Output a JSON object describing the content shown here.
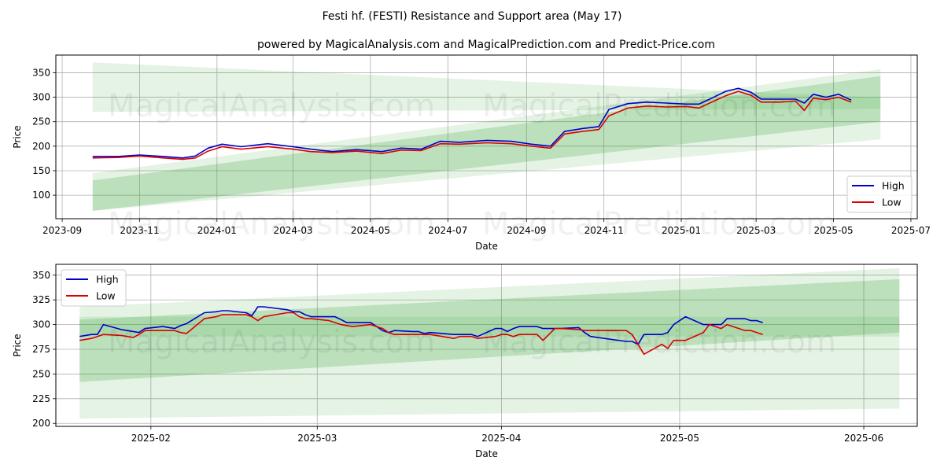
{
  "title": "Festi hf. (FESTI) Resistance and Support area (May 17)",
  "subtitle": "powered by MagicalAnalysis.com and MagicalPrediction.com and Predict-Price.com",
  "watermarks": [
    "MagicalAnalysis.com",
    "MagicalPrediction.com"
  ],
  "colors": {
    "high": "#0000cc",
    "low": "#dd0000",
    "band": "#2ca02c",
    "grid": "#b0b0b0"
  },
  "chart_data": [
    {
      "type": "line",
      "xlabel": "Date",
      "ylabel": "Price",
      "xlim": [
        "2023-08-27",
        "2025-07-06"
      ],
      "ylim": [
        52,
        386
      ],
      "x_ticks": [
        "2023-09",
        "2023-11",
        "2024-01",
        "2024-03",
        "2024-05",
        "2024-07",
        "2024-09",
        "2024-11",
        "2025-01",
        "2025-03",
        "2025-05",
        "2025-07"
      ],
      "y_ticks": [
        100,
        150,
        200,
        250,
        300,
        350
      ],
      "grid": true,
      "legend": "bottom-right",
      "bands": [
        {
          "x": [
            "2023-09-25",
            "2025-06-07"
          ],
          "upper": [
            371,
            299
          ],
          "lower": [
            270,
            276
          ],
          "opacity": 0.13
        },
        {
          "x": [
            "2023-09-25",
            "2025-06-07"
          ],
          "upper": [
            145,
            357
          ],
          "lower": [
            68,
            214
          ],
          "opacity": 0.13
        },
        {
          "x": [
            "2023-09-25",
            "2025-06-07"
          ],
          "upper": [
            130,
            343
          ],
          "lower": [
            68,
            250
          ],
          "opacity": 0.22
        }
      ],
      "series": [
        {
          "name": "High",
          "x": [
            "2023-09-25",
            "2023-10-15",
            "2023-11-01",
            "2023-11-20",
            "2023-12-05",
            "2023-12-15",
            "2023-12-25",
            "2024-01-05",
            "2024-01-20",
            "2024-02-10",
            "2024-03-01",
            "2024-03-15",
            "2024-04-01",
            "2024-04-20",
            "2024-05-10",
            "2024-05-25",
            "2024-06-10",
            "2024-06-25",
            "2024-07-10",
            "2024-08-01",
            "2024-08-20",
            "2024-09-05",
            "2024-09-20",
            "2024-10-01",
            "2024-10-15",
            "2024-10-28",
            "2024-11-05",
            "2024-11-20",
            "2024-12-05",
            "2024-12-20",
            "2025-01-05",
            "2025-01-15",
            "2025-01-25",
            "2025-02-05",
            "2025-02-15",
            "2025-02-25",
            "2025-03-05",
            "2025-03-20",
            "2025-04-01",
            "2025-04-08",
            "2025-04-15",
            "2025-04-25",
            "2025-05-05",
            "2025-05-15"
          ],
          "y": [
            179,
            179,
            182,
            179,
            176,
            180,
            196,
            204,
            199,
            205,
            199,
            194,
            189,
            193,
            189,
            196,
            194,
            210,
            208,
            212,
            210,
            204,
            200,
            230,
            236,
            240,
            275,
            287,
            290,
            288,
            286,
            286,
            298,
            312,
            318,
            310,
            296,
            296,
            296,
            288,
            306,
            300,
            306,
            294
          ]
        },
        {
          "name": "Low",
          "x": [
            "2023-09-25",
            "2023-10-15",
            "2023-11-01",
            "2023-11-20",
            "2023-12-05",
            "2023-12-15",
            "2023-12-25",
            "2024-01-05",
            "2024-01-20",
            "2024-02-10",
            "2024-03-01",
            "2024-03-15",
            "2024-04-01",
            "2024-04-20",
            "2024-05-10",
            "2024-05-25",
            "2024-06-10",
            "2024-06-25",
            "2024-07-10",
            "2024-08-01",
            "2024-08-20",
            "2024-09-05",
            "2024-09-20",
            "2024-10-01",
            "2024-10-15",
            "2024-10-28",
            "2024-11-05",
            "2024-11-20",
            "2024-12-05",
            "2024-12-20",
            "2025-01-05",
            "2025-01-15",
            "2025-01-25",
            "2025-02-05",
            "2025-02-15",
            "2025-02-25",
            "2025-03-05",
            "2025-03-20",
            "2025-04-01",
            "2025-04-08",
            "2025-04-15",
            "2025-04-25",
            "2025-05-05",
            "2025-05-15"
          ],
          "y": [
            176,
            177,
            180,
            176,
            173,
            176,
            190,
            199,
            194,
            199,
            194,
            189,
            187,
            190,
            185,
            192,
            191,
            205,
            204,
            207,
            205,
            200,
            196,
            225,
            230,
            234,
            262,
            278,
            282,
            280,
            281,
            278,
            290,
            303,
            312,
            304,
            290,
            290,
            292,
            273,
            298,
            295,
            300,
            290
          ]
        }
      ]
    },
    {
      "type": "line",
      "xlabel": "Date",
      "ylabel": "Price",
      "xlim": [
        "2025-01-16",
        "2025-06-10"
      ],
      "ylim": [
        197,
        361
      ],
      "x_ticks": [
        "2025-02",
        "2025-03",
        "2025-04",
        "2025-05",
        "2025-06"
      ],
      "y_ticks": [
        200,
        225,
        250,
        275,
        300,
        325,
        350
      ],
      "grid": true,
      "legend": "top-left",
      "bands": [
        {
          "x": [
            "2025-01-20",
            "2025-06-07"
          ],
          "upper": [
            308,
            308
          ],
          "lower": [
            288,
            288
          ],
          "opacity": 0.12
        },
        {
          "x": [
            "2025-01-20",
            "2025-06-07"
          ],
          "upper": [
            318,
            357
          ],
          "lower": [
            205,
            215
          ],
          "opacity": 0.13
        },
        {
          "x": [
            "2025-01-20",
            "2025-06-07"
          ],
          "upper": [
            305,
            346
          ],
          "lower": [
            242,
            292
          ],
          "opacity": 0.22
        }
      ],
      "series": [
        {
          "name": "High",
          "x": [
            "2025-01-20",
            "2025-01-22",
            "2025-01-23",
            "2025-01-24",
            "2025-01-27",
            "2025-01-28",
            "2025-01-29",
            "2025-01-30",
            "2025-01-31",
            "2025-02-03",
            "2025-02-05",
            "2025-02-06",
            "2025-02-07",
            "2025-02-10",
            "2025-02-12",
            "2025-02-13",
            "2025-02-14",
            "2025-02-17",
            "2025-02-18",
            "2025-02-19",
            "2025-02-20",
            "2025-02-24",
            "2025-02-25",
            "2025-02-26",
            "2025-02-27",
            "2025-02-28",
            "2025-03-03",
            "2025-03-04",
            "2025-03-05",
            "2025-03-06",
            "2025-03-07",
            "2025-03-10",
            "2025-03-11",
            "2025-03-12",
            "2025-03-13",
            "2025-03-14",
            "2025-03-17",
            "2025-03-18",
            "2025-03-19",
            "2025-03-20",
            "2025-03-24",
            "2025-03-25",
            "2025-03-26",
            "2025-03-27",
            "2025-03-28",
            "2025-03-31",
            "2025-04-01",
            "2025-04-02",
            "2025-04-03",
            "2025-04-04",
            "2025-04-07",
            "2025-04-08",
            "2025-04-09",
            "2025-04-10",
            "2025-04-11",
            "2025-04-14",
            "2025-04-15",
            "2025-04-16",
            "2025-04-22",
            "2025-04-23",
            "2025-04-24",
            "2025-04-25",
            "2025-04-28",
            "2025-04-29",
            "2025-04-30",
            "2025-05-02",
            "2025-05-05",
            "2025-05-06",
            "2025-05-07",
            "2025-05-08",
            "2025-05-09",
            "2025-05-12",
            "2025-05-13",
            "2025-05-14",
            "2025-05-15"
          ],
          "y": [
            288,
            290,
            290,
            300,
            295,
            294,
            293,
            292,
            296,
            298,
            296,
            299,
            301,
            312,
            313,
            314,
            314,
            312,
            309,
            318,
            318,
            315,
            313,
            313,
            310,
            308,
            308,
            308,
            305,
            302,
            302,
            302,
            298,
            294,
            292,
            294,
            293,
            293,
            291,
            292,
            290,
            290,
            290,
            290,
            288,
            296,
            296,
            293,
            296,
            298,
            298,
            296,
            296,
            296,
            296,
            297,
            292,
            288,
            283,
            283,
            280,
            290,
            290,
            292,
            300,
            308,
            300,
            300,
            300,
            300,
            306,
            306,
            304,
            304,
            302
          ]
        },
        {
          "name": "Low",
          "x": [
            "2025-01-20",
            "2025-01-22",
            "2025-01-23",
            "2025-01-24",
            "2025-01-27",
            "2025-01-28",
            "2025-01-29",
            "2025-01-30",
            "2025-01-31",
            "2025-02-03",
            "2025-02-05",
            "2025-02-06",
            "2025-02-07",
            "2025-02-10",
            "2025-02-12",
            "2025-02-13",
            "2025-02-14",
            "2025-02-17",
            "2025-02-18",
            "2025-02-19",
            "2025-02-20",
            "2025-02-24",
            "2025-02-25",
            "2025-02-26",
            "2025-02-27",
            "2025-02-28",
            "2025-03-03",
            "2025-03-04",
            "2025-03-05",
            "2025-03-06",
            "2025-03-07",
            "2025-03-10",
            "2025-03-11",
            "2025-03-12",
            "2025-03-13",
            "2025-03-14",
            "2025-03-17",
            "2025-03-18",
            "2025-03-19",
            "2025-03-20",
            "2025-03-24",
            "2025-03-25",
            "2025-03-26",
            "2025-03-27",
            "2025-03-28",
            "2025-03-31",
            "2025-04-01",
            "2025-04-02",
            "2025-04-03",
            "2025-04-04",
            "2025-04-07",
            "2025-04-08",
            "2025-04-09",
            "2025-04-10",
            "2025-04-11",
            "2025-04-14",
            "2025-04-15",
            "2025-04-16",
            "2025-04-22",
            "2025-04-23",
            "2025-04-24",
            "2025-04-25",
            "2025-04-28",
            "2025-04-29",
            "2025-04-30",
            "2025-05-02",
            "2025-05-05",
            "2025-05-06",
            "2025-05-07",
            "2025-05-08",
            "2025-05-09",
            "2025-05-12",
            "2025-05-13",
            "2025-05-14",
            "2025-05-15"
          ],
          "y": [
            284,
            286,
            288,
            290,
            289,
            288,
            287,
            290,
            294,
            294,
            294,
            292,
            291,
            306,
            308,
            310,
            310,
            310,
            308,
            304,
            308,
            312,
            312,
            308,
            306,
            306,
            304,
            302,
            300,
            299,
            298,
            300,
            298,
            296,
            292,
            290,
            290,
            290,
            290,
            290,
            286,
            288,
            288,
            288,
            286,
            288,
            290,
            290,
            288,
            290,
            290,
            284,
            290,
            296,
            296,
            295,
            294,
            294,
            294,
            290,
            280,
            270,
            280,
            276,
            284,
            284,
            292,
            300,
            298,
            296,
            300,
            294,
            294,
            292,
            290
          ]
        }
      ]
    }
  ]
}
